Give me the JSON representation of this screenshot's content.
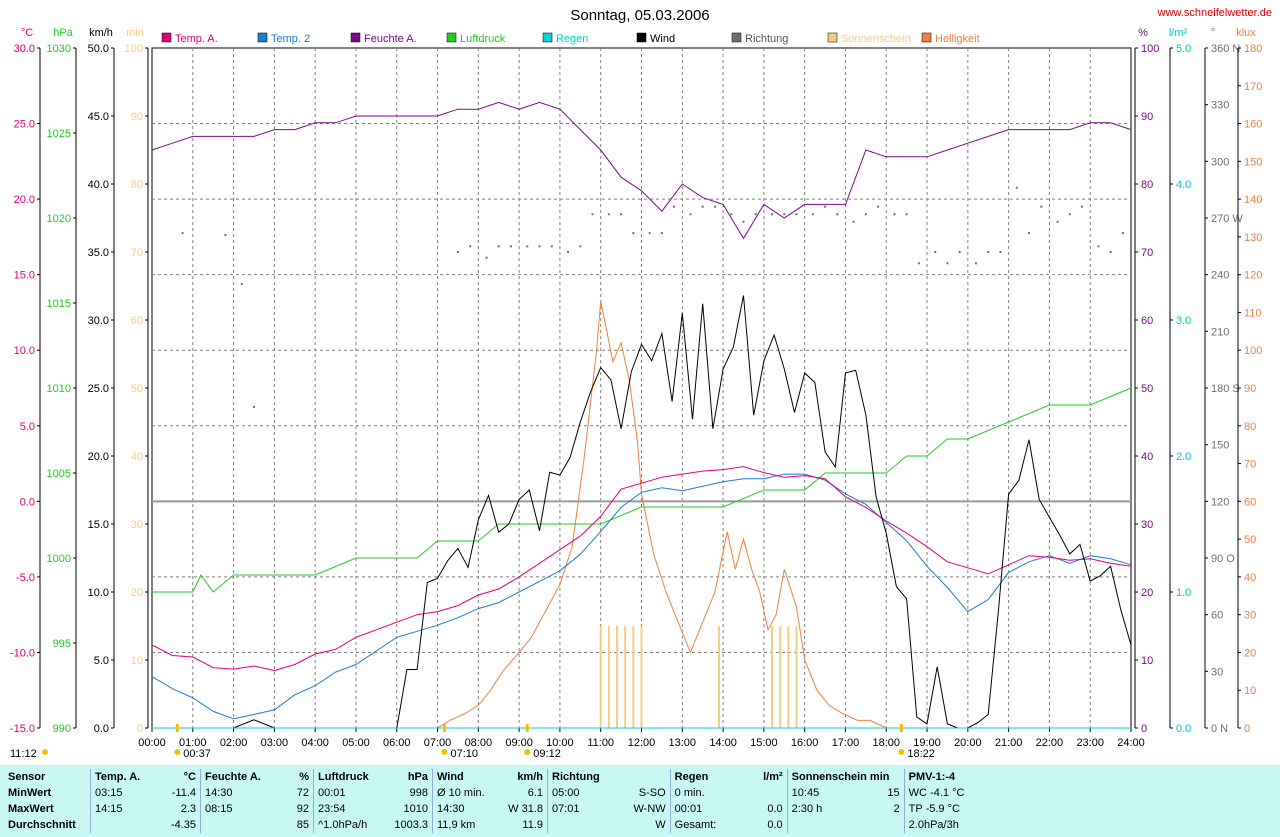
{
  "chart_data": {
    "type": "line",
    "title": "Sonntag, 05.03.2006",
    "website": "www.schneifelwetter.de",
    "x": {
      "labels": [
        "00:00",
        "01:00",
        "02:00",
        "03:00",
        "04:00",
        "05:00",
        "06:00",
        "07:00",
        "08:00",
        "09:00",
        "10:00",
        "11:00",
        "12:00",
        "13:00",
        "14:00",
        "15:00",
        "16:00",
        "17:00",
        "18:00",
        "19:00",
        "20:00",
        "21:00",
        "22:00",
        "23:00",
        "24:00"
      ],
      "range_h": [
        0,
        24
      ],
      "event_markers": [
        {
          "label": "00:37",
          "t": 0.62
        },
        {
          "label": "07:10",
          "t": 7.17
        },
        {
          "label": "09:12",
          "t": 9.2
        },
        {
          "label": "18:22",
          "t": 18.37
        }
      ],
      "footer_left": "11:12"
    },
    "legend": [
      "Temp. A.",
      "Temp. 2",
      "Feuchte A.",
      "Luftdruck",
      "Regen",
      "Wind",
      "Richtung",
      "Sonnenschein",
      "Helligkeit"
    ],
    "colors": {
      "temp_a": "#e0007c",
      "temp_2": "#1e7cd4",
      "feuchte": "#7a0a8c",
      "luftdruck": "#22cc22",
      "regen": "#00d0d8",
      "wind": "#000000",
      "richtung": "#707070",
      "sonnenschein": "#f8cc80",
      "helligkeit": "#f08040"
    },
    "axes": {
      "temp_c": {
        "label": "°C",
        "min": -15,
        "max": 30,
        "ticks": [
          "30.0",
          "25.0",
          "20.0",
          "15.0",
          "10.0",
          "5.0",
          "0.0",
          "-5.0",
          "-10.0",
          "-15.0"
        ]
      },
      "pressure_hpa": {
        "label": "hPa",
        "min": 990,
        "max": 1030,
        "ticks": [
          "1030",
          "1025",
          "1020",
          "1015",
          "1010",
          "1005",
          "1000",
          "995",
          "990"
        ]
      },
      "wind_kmh": {
        "label": "km/h",
        "min": 0,
        "max": 50,
        "ticks": [
          "50.0",
          "45.0",
          "40.0",
          "35.0",
          "30.0",
          "25.0",
          "20.0",
          "15.0",
          "10.0",
          "5.0",
          "0.0"
        ]
      },
      "sun_min": {
        "label": "min",
        "min": 0,
        "max": 100,
        "ticks": [
          "100",
          "90",
          "80",
          "70",
          "60",
          "50",
          "40",
          "30",
          "20",
          "10",
          "0"
        ]
      },
      "humidity_pct": {
        "label": "%",
        "min": 0,
        "max": 100,
        "ticks": [
          "100",
          "90",
          "80",
          "70",
          "60",
          "50",
          "40",
          "30",
          "20",
          "10",
          "0"
        ]
      },
      "rain_lm2": {
        "label": "l/m²",
        "min": 0,
        "max": 5,
        "ticks": [
          "5.0",
          "4.0",
          "3.0",
          "2.0",
          "1.0",
          "0.0"
        ]
      },
      "direction_deg": {
        "label": "°",
        "min": 0,
        "max": 360,
        "ticks": [
          "360 N",
          "330",
          "300",
          "270 W",
          "240",
          "210",
          "180 S",
          "150",
          "120",
          "90  O",
          "60",
          "30",
          "0  N"
        ]
      },
      "brightness_klux": {
        "label": "klux",
        "min": 0,
        "max": 180,
        "ticks": [
          "180",
          "170",
          "160",
          "150",
          "140",
          "130",
          "120",
          "110",
          "100",
          "90",
          "80",
          "70",
          "60",
          "50",
          "40",
          "30",
          "20",
          "10",
          "0"
        ]
      }
    },
    "series": {
      "temp_a": {
        "name": "Temp. A.",
        "unit": "°C",
        "x": [
          0,
          0.5,
          1,
          1.5,
          2,
          2.5,
          3,
          3.5,
          4,
          4.5,
          5,
          5.5,
          6,
          6.5,
          7,
          7.5,
          8,
          8.5,
          9,
          9.5,
          10,
          10.5,
          11,
          11.5,
          12,
          12.5,
          13,
          13.5,
          14,
          14.5,
          15,
          15.5,
          16,
          16.5,
          17,
          17.5,
          18,
          18.5,
          19,
          19.5,
          20,
          20.5,
          21,
          21.5,
          22,
          22.5,
          23,
          23.5,
          24
        ],
        "y": [
          -9.5,
          -10.2,
          -10.3,
          -11.0,
          -11.1,
          -10.9,
          -11.2,
          -10.8,
          -10.1,
          -9.8,
          -9.0,
          -8.5,
          -8.0,
          -7.5,
          -7.3,
          -6.9,
          -6.2,
          -5.8,
          -5.0,
          -4.1,
          -3.2,
          -2.3,
          -1.0,
          0.8,
          1.2,
          1.6,
          1.8,
          2.0,
          2.1,
          2.3,
          1.9,
          1.6,
          1.7,
          1.5,
          0.3,
          -0.4,
          -1.3,
          -2.1,
          -3.0,
          -4.0,
          -4.4,
          -4.8,
          -4.2,
          -3.6,
          -3.7,
          -3.9,
          -3.8,
          -4.1,
          -4.3
        ]
      },
      "temp_2": {
        "name": "Temp. 2",
        "unit": "°C",
        "x": [
          0,
          0.5,
          1,
          1.5,
          2,
          2.5,
          3,
          3.5,
          4,
          4.5,
          5,
          5.5,
          6,
          6.5,
          7,
          7.5,
          8,
          8.5,
          9,
          9.5,
          10,
          10.5,
          11,
          11.5,
          12,
          12.5,
          13,
          13.5,
          14,
          14.5,
          15,
          15.5,
          16,
          16.5,
          17,
          17.5,
          18,
          18.5,
          19,
          19.5,
          20,
          20.5,
          21,
          21.5,
          22,
          22.5,
          23,
          23.5,
          24
        ],
        "y": [
          -11.6,
          -12.4,
          -13.0,
          -13.9,
          -14.4,
          -14.1,
          -13.8,
          -12.8,
          -12.2,
          -11.3,
          -10.8,
          -9.9,
          -9.0,
          -8.6,
          -8.2,
          -7.7,
          -7.1,
          -6.7,
          -6.0,
          -5.3,
          -4.6,
          -3.5,
          -2.0,
          -0.4,
          0.6,
          0.9,
          0.7,
          1.0,
          1.3,
          1.5,
          1.5,
          1.8,
          1.8,
          1.4,
          0.5,
          -0.2,
          -1.4,
          -2.6,
          -4.3,
          -5.7,
          -7.3,
          -6.5,
          -4.7,
          -4.0,
          -3.6,
          -4.1,
          -3.6,
          -3.8,
          -4.2
        ]
      },
      "feuchte": {
        "name": "Feuchte A.",
        "unit": "%",
        "x": [
          0,
          0.5,
          1,
          1.5,
          2,
          2.5,
          3,
          3.5,
          4,
          4.5,
          5,
          5.5,
          6,
          6.5,
          7,
          7.5,
          8,
          8.5,
          9,
          9.5,
          10,
          10.5,
          11,
          11.5,
          12,
          12.5,
          13,
          13.5,
          14,
          14.5,
          15,
          15.5,
          16,
          16.5,
          17,
          17.5,
          18,
          18.5,
          19,
          19.5,
          20,
          20.5,
          21,
          21.5,
          22,
          22.5,
          23,
          23.5,
          24
        ],
        "y": [
          85,
          86,
          87,
          87,
          87,
          87,
          88,
          88,
          89,
          89,
          90,
          90,
          90,
          90,
          90,
          91,
          91,
          92,
          91,
          92,
          91,
          88,
          85,
          81,
          79,
          76,
          80,
          78,
          77,
          72,
          77,
          75,
          77,
          77,
          77,
          85,
          84,
          84,
          84,
          85,
          86,
          87,
          88,
          88,
          88,
          88,
          89,
          89,
          88
        ]
      },
      "luftdruck": {
        "name": "Luftdruck",
        "unit": "hPa",
        "x": [
          0,
          1,
          1.2,
          1.5,
          2,
          2.5,
          3,
          4,
          5,
          6,
          6.5,
          7,
          8,
          8.5,
          9,
          10,
          11,
          12,
          13,
          14,
          15,
          16,
          16.5,
          17,
          18,
          18.5,
          19,
          19.5,
          20,
          21,
          22,
          23,
          24
        ],
        "y": [
          998,
          998,
          999,
          998,
          999,
          999,
          999,
          999,
          1000,
          1000,
          1000,
          1001,
          1001,
          1002,
          1002,
          1002,
          1002,
          1003,
          1003,
          1003,
          1004,
          1004,
          1005,
          1005,
          1005,
          1006,
          1006,
          1007,
          1007,
          1008,
          1009,
          1009,
          1010
        ]
      },
      "regen": {
        "name": "Regen",
        "unit": "l/m²",
        "x": [
          0,
          24
        ],
        "y": [
          0,
          0
        ]
      },
      "wind": {
        "name": "Wind",
        "unit": "km/h",
        "x": [
          0,
          1,
          2,
          2.5,
          3,
          4,
          5,
          6,
          6.25,
          6.5,
          6.75,
          7,
          7.25,
          7.5,
          7.75,
          8,
          8.25,
          8.5,
          8.75,
          9,
          9.25,
          9.5,
          9.75,
          10,
          10.25,
          10.5,
          10.75,
          11,
          11.25,
          11.5,
          11.75,
          12,
          12.25,
          12.5,
          12.75,
          13,
          13.25,
          13.5,
          13.75,
          14,
          14.25,
          14.5,
          14.75,
          15,
          15.25,
          15.5,
          15.75,
          16,
          16.25,
          16.5,
          16.75,
          17,
          17.25,
          17.5,
          17.75,
          18,
          18.25,
          18.5,
          18.75,
          19,
          19.25,
          19.5,
          19.75,
          20,
          20.25,
          20.5,
          20.75,
          21,
          21.25,
          21.5,
          21.75,
          22,
          22.25,
          22.5,
          22.75,
          23,
          23.25,
          23.5,
          23.75,
          24
        ],
        "y": [
          0,
          0,
          0,
          0.6,
          0,
          0,
          0,
          0,
          4.3,
          4.3,
          10.7,
          11.0,
          12.3,
          13.2,
          11.8,
          15.3,
          17.1,
          14.4,
          15.0,
          16.8,
          17.5,
          14.5,
          18.8,
          18.6,
          19.9,
          22.5,
          24.7,
          26.5,
          25.6,
          22.0,
          26.2,
          28.2,
          27.0,
          29.0,
          24.0,
          30.5,
          22.7,
          31.2,
          22.0,
          26.4,
          28.0,
          31.8,
          23.0,
          27.0,
          28.9,
          26.4,
          23.2,
          26.1,
          25.4,
          20.3,
          19.2,
          26.1,
          26.3,
          23.0,
          17.0,
          14.3,
          10.4,
          9.5,
          0.8,
          0.3,
          4.5,
          0.3,
          0,
          0,
          0.4,
          1.0,
          8.6,
          17.2,
          18.2,
          21.2,
          16.8,
          15.5,
          14.2,
          12.8,
          13.5,
          10.8,
          11.2,
          11.9,
          8.7,
          6.1
        ]
      },
      "richtung": {
        "name": "Richtung",
        "unit": "°",
        "x": [
          0.75,
          1.8,
          2.2,
          2.5,
          7.5,
          7.8,
          8.2,
          8.5,
          8.8,
          9.2,
          9.5,
          9.8,
          10.2,
          10.5,
          10.8,
          11.2,
          11.5,
          11.8,
          12.2,
          12.5,
          12.8,
          13.2,
          13.5,
          13.8,
          14.2,
          14.5,
          14.8,
          15.2,
          15.5,
          15.8,
          16.2,
          16.5,
          16.8,
          17.2,
          17.5,
          17.8,
          18.2,
          18.5,
          18.8,
          19.2,
          19.5,
          19.8,
          20.2,
          20.5,
          20.8,
          21.2,
          21.5,
          21.8,
          22.2,
          22.5,
          22.8,
          23.2,
          23.5,
          23.8
        ],
        "y": [
          262,
          261,
          235,
          170,
          252,
          255,
          249,
          255,
          255,
          255,
          255,
          255,
          252,
          255,
          272,
          272,
          272,
          262,
          262,
          262,
          276,
          272,
          276,
          276,
          272,
          268,
          272,
          272,
          272,
          272,
          272,
          276,
          272,
          268,
          272,
          276,
          272,
          272,
          246,
          252,
          246,
          252,
          246,
          252,
          252,
          286,
          262,
          276,
          268,
          272,
          276,
          255,
          252,
          262
        ]
      },
      "sonnenschein": {
        "name": "Sonnenschein",
        "unit": "min",
        "x": [
          11.0,
          11.2,
          11.4,
          11.6,
          11.8,
          12.0,
          13.9,
          15.2,
          15.4,
          15.6,
          15.8
        ],
        "y": [
          15,
          15,
          15,
          15,
          15,
          15,
          15,
          15,
          15,
          15,
          15
        ]
      },
      "helligkeit": {
        "name": "Helligkeit",
        "unit": "klux",
        "x": [
          0,
          7.0,
          7.3,
          7.7,
          8.0,
          8.3,
          8.6,
          9.0,
          9.3,
          9.6,
          10.0,
          10.3,
          10.6,
          10.9,
          11.0,
          11.3,
          11.5,
          11.7,
          11.9,
          12.0,
          12.3,
          12.6,
          12.9,
          13.2,
          13.5,
          13.8,
          14.1,
          14.3,
          14.5,
          14.7,
          14.9,
          15.1,
          15.3,
          15.5,
          15.8,
          16.0,
          16.3,
          16.6,
          16.9,
          17.3,
          17.6,
          18.0,
          18.4,
          18.8,
          19.0
        ],
        "y": [
          0,
          0,
          2,
          4,
          6,
          10,
          15,
          20,
          24,
          30,
          38,
          48,
          72,
          100,
          113,
          97,
          102,
          92,
          76,
          62,
          46,
          36,
          28,
          20,
          28,
          36,
          52,
          42,
          50,
          42,
          36,
          26,
          30,
          42,
          32,
          18,
          10,
          6,
          4,
          2,
          2,
          0,
          0,
          0,
          0
        ]
      }
    },
    "stats": {
      "header": [
        "Sensor",
        "Temp. A.",
        "°C",
        "Feuchte A.",
        "%",
        "Luftdruck",
        "hPa",
        "Wind",
        "km/h",
        "Richtung",
        "Regen",
        "l/m²",
        "Sonnenschein min",
        "PMV-1:-4"
      ],
      "rows": [
        [
          "MinWert",
          "03:15",
          "-11.4",
          "14:30",
          "72",
          "00:01",
          "998",
          "Ø 10 min.",
          "6.1",
          "05:00",
          "S-SO",
          "0 min.",
          "",
          "10:45",
          "15",
          "WC -4.1 °C"
        ],
        [
          "MaxWert",
          "14:15",
          "2.3",
          "08:15",
          "92",
          "23:54",
          "1010",
          "14:30",
          "W 31.8",
          "07:01",
          "W-NW",
          "00:01",
          "0.0",
          "2:30 h",
          "2",
          "TP -5.9 °C"
        ],
        [
          "Durchschnitt",
          "",
          "-4.35",
          "",
          "85",
          "^1.0hPa/h",
          "1003.3",
          "11,9 km",
          "11.9",
          "",
          "W",
          "Gesamt:",
          "0.0",
          "",
          "",
          "2.0hPa/3h"
        ]
      ]
    }
  }
}
